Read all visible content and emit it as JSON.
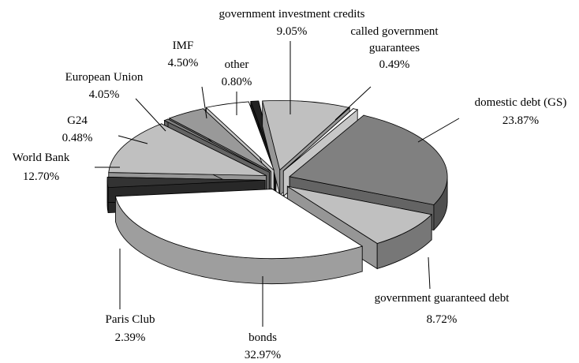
{
  "chart_data": {
    "type": "pie",
    "categories": [
      "domestic debt (GS)",
      "government guaranteed debt",
      "bonds",
      "Paris Club",
      "World Bank",
      "G24",
      "European Union",
      "IMF",
      "other",
      "government investment credits",
      "called government guarantees"
    ],
    "values": [
      23.87,
      8.72,
      32.97,
      2.39,
      12.7,
      0.48,
      4.05,
      4.5,
      0.8,
      9.05,
      0.49
    ],
    "value_labels": [
      "23.87%",
      "8.72%",
      "32.97%",
      "2.39%",
      "12.70%",
      "0.48%",
      "4.05%",
      "4.50%",
      "0.80%",
      "9.05%",
      "0.49%"
    ],
    "colors": [
      "#808080",
      "#c0c0c0",
      "#ffffff",
      "#333333",
      "#c0c0c0",
      "#808080",
      "#999999",
      "#ffffff",
      "#222222",
      "#c0c0c0",
      "#ffffff"
    ]
  }
}
